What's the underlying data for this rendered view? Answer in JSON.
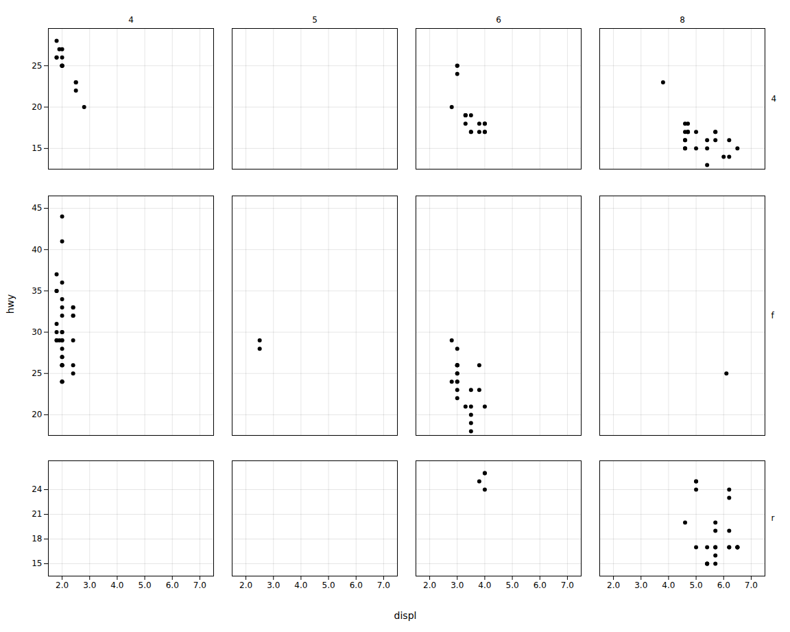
{
  "chart_data": {
    "type": "scatter",
    "x_label": "displ",
    "y_label": "hwy",
    "color": "#000000",
    "grid": true,
    "xlim": [
      1.5,
      7.5
    ],
    "xticks": [
      2,
      3,
      4,
      5,
      6,
      7
    ],
    "columns": [
      "4",
      "5",
      "6",
      "8"
    ],
    "rows": [
      {
        "label": "4",
        "ylim": [
          12.5,
          29.5
        ],
        "yticks": [
          15,
          20,
          25
        ]
      },
      {
        "label": "f",
        "ylim": [
          17.5,
          46.5
        ],
        "yticks": [
          20,
          25,
          30,
          35,
          40,
          45
        ]
      },
      {
        "label": "r",
        "ylim": [
          13.5,
          27.5
        ],
        "yticks": [
          15,
          18,
          21,
          24
        ]
      }
    ],
    "points": [
      {
        "column": "4",
        "row": "4",
        "x": 1.8,
        "y": 26
      },
      {
        "column": "4",
        "row": "4",
        "x": 1.8,
        "y": 26
      },
      {
        "column": "4",
        "row": "4",
        "x": 2.0,
        "y": 25
      },
      {
        "column": "4",
        "row": "4",
        "x": 2.0,
        "y": 25
      },
      {
        "column": "4",
        "row": "4",
        "x": 2.0,
        "y": 25
      },
      {
        "column": "4",
        "row": "4",
        "x": 2.0,
        "y": 27
      },
      {
        "column": "4",
        "row": "4",
        "x": 2.0,
        "y": 26
      },
      {
        "column": "4",
        "row": "4",
        "x": 2.0,
        "y": 25
      },
      {
        "column": "4",
        "row": "4",
        "x": 2.0,
        "y": 25
      },
      {
        "column": "4",
        "row": "4",
        "x": 2.5,
        "y": 23
      },
      {
        "column": "4",
        "row": "4",
        "x": 2.5,
        "y": 23
      },
      {
        "column": "4",
        "row": "4",
        "x": 2.5,
        "y": 22
      },
      {
        "column": "4",
        "row": "4",
        "x": 2.8,
        "y": 20
      },
      {
        "column": "4",
        "row": "4",
        "x": 1.8,
        "y": 28
      },
      {
        "column": "4",
        "row": "4",
        "x": 1.9,
        "y": 27
      },
      {
        "column": "4",
        "row": "f",
        "x": 1.8,
        "y": 29
      },
      {
        "column": "4",
        "row": "f",
        "x": 1.8,
        "y": 29
      },
      {
        "column": "4",
        "row": "f",
        "x": 1.8,
        "y": 31
      },
      {
        "column": "4",
        "row": "f",
        "x": 1.8,
        "y": 30
      },
      {
        "column": "4",
        "row": "f",
        "x": 1.8,
        "y": 35
      },
      {
        "column": "4",
        "row": "f",
        "x": 1.8,
        "y": 37
      },
      {
        "column": "4",
        "row": "f",
        "x": 1.8,
        "y": 35
      },
      {
        "column": "4",
        "row": "f",
        "x": 1.9,
        "y": 29
      },
      {
        "column": "4",
        "row": "f",
        "x": 2.0,
        "y": 26
      },
      {
        "column": "4",
        "row": "f",
        "x": 2.0,
        "y": 26
      },
      {
        "column": "4",
        "row": "f",
        "x": 2.0,
        "y": 27
      },
      {
        "column": "4",
        "row": "f",
        "x": 2.0,
        "y": 30
      },
      {
        "column": "4",
        "row": "f",
        "x": 2.0,
        "y": 26
      },
      {
        "column": "4",
        "row": "f",
        "x": 2.0,
        "y": 29
      },
      {
        "column": "4",
        "row": "f",
        "x": 2.0,
        "y": 26
      },
      {
        "column": "4",
        "row": "f",
        "x": 2.0,
        "y": 29
      },
      {
        "column": "4",
        "row": "f",
        "x": 2.0,
        "y": 28
      },
      {
        "column": "4",
        "row": "f",
        "x": 2.0,
        "y": 27
      },
      {
        "column": "4",
        "row": "f",
        "x": 2.0,
        "y": 24
      },
      {
        "column": "4",
        "row": "f",
        "x": 2.0,
        "y": 24
      },
      {
        "column": "4",
        "row": "f",
        "x": 2.0,
        "y": 24
      },
      {
        "column": "4",
        "row": "f",
        "x": 2.0,
        "y": 32
      },
      {
        "column": "4",
        "row": "f",
        "x": 2.0,
        "y": 33
      },
      {
        "column": "4",
        "row": "f",
        "x": 2.0,
        "y": 41
      },
      {
        "column": "4",
        "row": "f",
        "x": 2.0,
        "y": 44
      },
      {
        "column": "4",
        "row": "f",
        "x": 2.0,
        "y": 36
      },
      {
        "column": "4",
        "row": "f",
        "x": 2.0,
        "y": 34
      },
      {
        "column": "4",
        "row": "f",
        "x": 2.0,
        "y": 30
      },
      {
        "column": "4",
        "row": "f",
        "x": 2.4,
        "y": 32
      },
      {
        "column": "4",
        "row": "f",
        "x": 2.4,
        "y": 33
      },
      {
        "column": "4",
        "row": "f",
        "x": 2.4,
        "y": 33
      },
      {
        "column": "4",
        "row": "f",
        "x": 2.4,
        "y": 32
      },
      {
        "column": "4",
        "row": "f",
        "x": 2.4,
        "y": 29
      },
      {
        "column": "4",
        "row": "f",
        "x": 2.4,
        "y": 26
      },
      {
        "column": "4",
        "row": "f",
        "x": 2.4,
        "y": 25
      },
      {
        "column": "5",
        "row": "f",
        "x": 2.5,
        "y": 28
      },
      {
        "column": "5",
        "row": "f",
        "x": 2.5,
        "y": 29
      },
      {
        "column": "6",
        "row": "4",
        "x": 3.0,
        "y": 25
      },
      {
        "column": "6",
        "row": "4",
        "x": 3.0,
        "y": 25
      },
      {
        "column": "6",
        "row": "4",
        "x": 3.0,
        "y": 24
      },
      {
        "column": "6",
        "row": "4",
        "x": 3.3,
        "y": 18
      },
      {
        "column": "6",
        "row": "4",
        "x": 3.3,
        "y": 19
      },
      {
        "column": "6",
        "row": "4",
        "x": 3.3,
        "y": 19
      },
      {
        "column": "6",
        "row": "4",
        "x": 3.3,
        "y": 19
      },
      {
        "column": "6",
        "row": "4",
        "x": 3.5,
        "y": 19
      },
      {
        "column": "6",
        "row": "4",
        "x": 3.5,
        "y": 17
      },
      {
        "column": "6",
        "row": "4",
        "x": 3.5,
        "y": 17
      },
      {
        "column": "6",
        "row": "4",
        "x": 3.8,
        "y": 17
      },
      {
        "column": "6",
        "row": "4",
        "x": 3.8,
        "y": 18
      },
      {
        "column": "6",
        "row": "4",
        "x": 4.0,
        "y": 17
      },
      {
        "column": "6",
        "row": "4",
        "x": 4.0,
        "y": 17
      },
      {
        "column": "6",
        "row": "4",
        "x": 4.0,
        "y": 18
      },
      {
        "column": "6",
        "row": "4",
        "x": 4.0,
        "y": 18
      },
      {
        "column": "6",
        "row": "4",
        "x": 2.8,
        "y": 20
      },
      {
        "column": "6",
        "row": "f",
        "x": 2.8,
        "y": 29
      },
      {
        "column": "6",
        "row": "f",
        "x": 2.8,
        "y": 24
      },
      {
        "column": "6",
        "row": "f",
        "x": 3.0,
        "y": 26
      },
      {
        "column": "6",
        "row": "f",
        "x": 3.0,
        "y": 28
      },
      {
        "column": "6",
        "row": "f",
        "x": 3.0,
        "y": 24
      },
      {
        "column": "6",
        "row": "f",
        "x": 3.0,
        "y": 26
      },
      {
        "column": "6",
        "row": "f",
        "x": 3.0,
        "y": 26
      },
      {
        "column": "6",
        "row": "f",
        "x": 3.0,
        "y": 25
      },
      {
        "column": "6",
        "row": "f",
        "x": 3.0,
        "y": 25
      },
      {
        "column": "6",
        "row": "f",
        "x": 3.0,
        "y": 24
      },
      {
        "column": "6",
        "row": "f",
        "x": 3.0,
        "y": 26
      },
      {
        "column": "6",
        "row": "f",
        "x": 3.0,
        "y": 22
      },
      {
        "column": "6",
        "row": "f",
        "x": 3.0,
        "y": 23
      },
      {
        "column": "6",
        "row": "f",
        "x": 3.3,
        "y": 21
      },
      {
        "column": "6",
        "row": "f",
        "x": 3.5,
        "y": 21
      },
      {
        "column": "6",
        "row": "f",
        "x": 3.5,
        "y": 23
      },
      {
        "column": "6",
        "row": "f",
        "x": 3.5,
        "y": 18
      },
      {
        "column": "6",
        "row": "f",
        "x": 3.5,
        "y": 20
      },
      {
        "column": "6",
        "row": "f",
        "x": 3.5,
        "y": 19
      },
      {
        "column": "6",
        "row": "f",
        "x": 3.8,
        "y": 23
      },
      {
        "column": "6",
        "row": "f",
        "x": 3.8,
        "y": 26
      },
      {
        "column": "6",
        "row": "f",
        "x": 4.0,
        "y": 21
      },
      {
        "column": "6",
        "row": "r",
        "x": 3.8,
        "y": 25
      },
      {
        "column": "6",
        "row": "r",
        "x": 4.0,
        "y": 24
      },
      {
        "column": "6",
        "row": "r",
        "x": 4.0,
        "y": 26
      },
      {
        "column": "6",
        "row": "r",
        "x": 4.0,
        "y": 26
      },
      {
        "column": "8",
        "row": "4",
        "x": 4.6,
        "y": 16
      },
      {
        "column": "8",
        "row": "4",
        "x": 4.6,
        "y": 15
      },
      {
        "column": "8",
        "row": "4",
        "x": 4.6,
        "y": 16
      },
      {
        "column": "8",
        "row": "4",
        "x": 4.6,
        "y": 15
      },
      {
        "column": "8",
        "row": "4",
        "x": 4.6,
        "y": 17
      },
      {
        "column": "8",
        "row": "4",
        "x": 4.6,
        "y": 18
      },
      {
        "column": "8",
        "row": "4",
        "x": 5.0,
        "y": 17
      },
      {
        "column": "8",
        "row": "4",
        "x": 5.0,
        "y": 15
      },
      {
        "column": "8",
        "row": "4",
        "x": 5.4,
        "y": 15
      },
      {
        "column": "8",
        "row": "4",
        "x": 5.4,
        "y": 13
      },
      {
        "column": "8",
        "row": "4",
        "x": 5.7,
        "y": 17
      },
      {
        "column": "8",
        "row": "4",
        "x": 5.7,
        "y": 17
      },
      {
        "column": "8",
        "row": "4",
        "x": 6.0,
        "y": 14
      },
      {
        "column": "8",
        "row": "4",
        "x": 6.2,
        "y": 16
      },
      {
        "column": "8",
        "row": "4",
        "x": 6.2,
        "y": 14
      },
      {
        "column": "8",
        "row": "4",
        "x": 6.5,
        "y": 15
      },
      {
        "column": "8",
        "row": "4",
        "x": 5.4,
        "y": 16
      },
      {
        "column": "8",
        "row": "4",
        "x": 4.7,
        "y": 17
      },
      {
        "column": "8",
        "row": "4",
        "x": 4.7,
        "y": 17
      },
      {
        "column": "8",
        "row": "4",
        "x": 4.7,
        "y": 17
      },
      {
        "column": "8",
        "row": "4",
        "x": 4.7,
        "y": 18
      },
      {
        "column": "8",
        "row": "4",
        "x": 5.7,
        "y": 16
      },
      {
        "column": "8",
        "row": "4",
        "x": 3.8,
        "y": 23
      },
      {
        "column": "8",
        "row": "f",
        "x": 6.1,
        "y": 25
      },
      {
        "column": "8",
        "row": "r",
        "x": 4.6,
        "y": 20
      },
      {
        "column": "8",
        "row": "r",
        "x": 5.0,
        "y": 17
      },
      {
        "column": "8",
        "row": "r",
        "x": 5.4,
        "y": 17
      },
      {
        "column": "8",
        "row": "r",
        "x": 5.7,
        "y": 17
      },
      {
        "column": "8",
        "row": "r",
        "x": 5.7,
        "y": 17
      },
      {
        "column": "8",
        "row": "r",
        "x": 6.2,
        "y": 17
      },
      {
        "column": "8",
        "row": "r",
        "x": 6.2,
        "y": 17
      },
      {
        "column": "8",
        "row": "r",
        "x": 5.4,
        "y": 15
      },
      {
        "column": "8",
        "row": "r",
        "x": 5.4,
        "y": 15
      },
      {
        "column": "8",
        "row": "r",
        "x": 5.4,
        "y": 15
      },
      {
        "column": "8",
        "row": "r",
        "x": 5.7,
        "y": 16
      },
      {
        "column": "8",
        "row": "r",
        "x": 5.7,
        "y": 15
      },
      {
        "column": "8",
        "row": "r",
        "x": 6.2,
        "y": 24
      },
      {
        "column": "8",
        "row": "r",
        "x": 6.2,
        "y": 23
      },
      {
        "column": "8",
        "row": "r",
        "x": 6.5,
        "y": 17
      },
      {
        "column": "8",
        "row": "r",
        "x": 6.5,
        "y": 17
      },
      {
        "column": "8",
        "row": "r",
        "x": 6.5,
        "y": 17
      },
      {
        "column": "8",
        "row": "r",
        "x": 5.0,
        "y": 25
      },
      {
        "column": "8",
        "row": "r",
        "x": 5.0,
        "y": 24
      },
      {
        "column": "8",
        "row": "r",
        "x": 5.0,
        "y": 25
      },
      {
        "column": "8",
        "row": "r",
        "x": 5.7,
        "y": 19
      },
      {
        "column": "8",
        "row": "r",
        "x": 5.7,
        "y": 20
      },
      {
        "column": "8",
        "row": "r",
        "x": 6.2,
        "y": 19
      },
      {
        "column": "8",
        "row": "r",
        "x": 6.5,
        "y": 17
      }
    ]
  }
}
